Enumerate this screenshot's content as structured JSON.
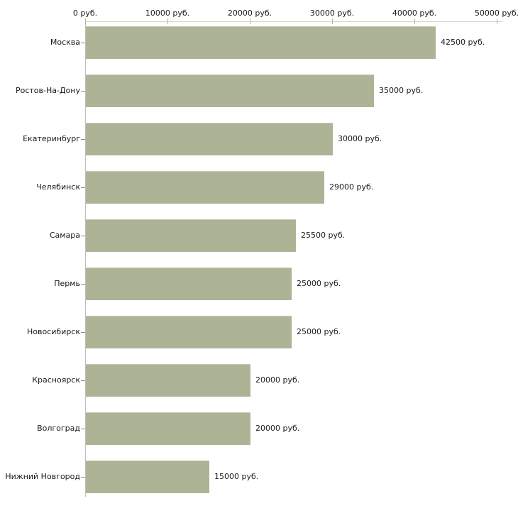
{
  "chart_data": {
    "type": "bar",
    "orientation": "horizontal",
    "title": "",
    "xlabel": "",
    "ylabel": "",
    "unit": "руб.",
    "categories": [
      "Москва",
      "Ростов-На-Дону",
      "Екатеринбург",
      "Челябинск",
      "Самара",
      "Пермь",
      "Новосибирск",
      "Красноярск",
      "Волгоград",
      "Нижний Новгород"
    ],
    "values": [
      42500,
      35000,
      30000,
      29000,
      25500,
      25000,
      25000,
      20000,
      20000,
      15000
    ],
    "value_labels": [
      "42500 руб.",
      "35000 руб.",
      "30000 руб.",
      "29000 руб.",
      "25500 руб.",
      "25000 руб.",
      "25000 руб.",
      "20000 руб.",
      "20000 руб.",
      "15000 руб."
    ],
    "x_ticks": [
      0,
      10000,
      20000,
      30000,
      40000,
      50000
    ],
    "x_tick_labels": [
      "0 руб.",
      "10000 руб.",
      "20000 руб.",
      "30000 руб.",
      "40000 руб.",
      "50000 руб."
    ],
    "xlim": [
      0,
      50000
    ],
    "axis_position": "top",
    "grid": false,
    "legend": "none",
    "colors": {
      "bar_fill": "#adb496",
      "bar_top_highlight": "#c6cbb2",
      "axis_line": "#d6d6c4",
      "axis_tick": "#b5b98e",
      "y_axis_line": "#bdbdbd",
      "category_tick": "#8a8a8a",
      "text": "#1a1a1a",
      "background": "#ffffff"
    }
  }
}
